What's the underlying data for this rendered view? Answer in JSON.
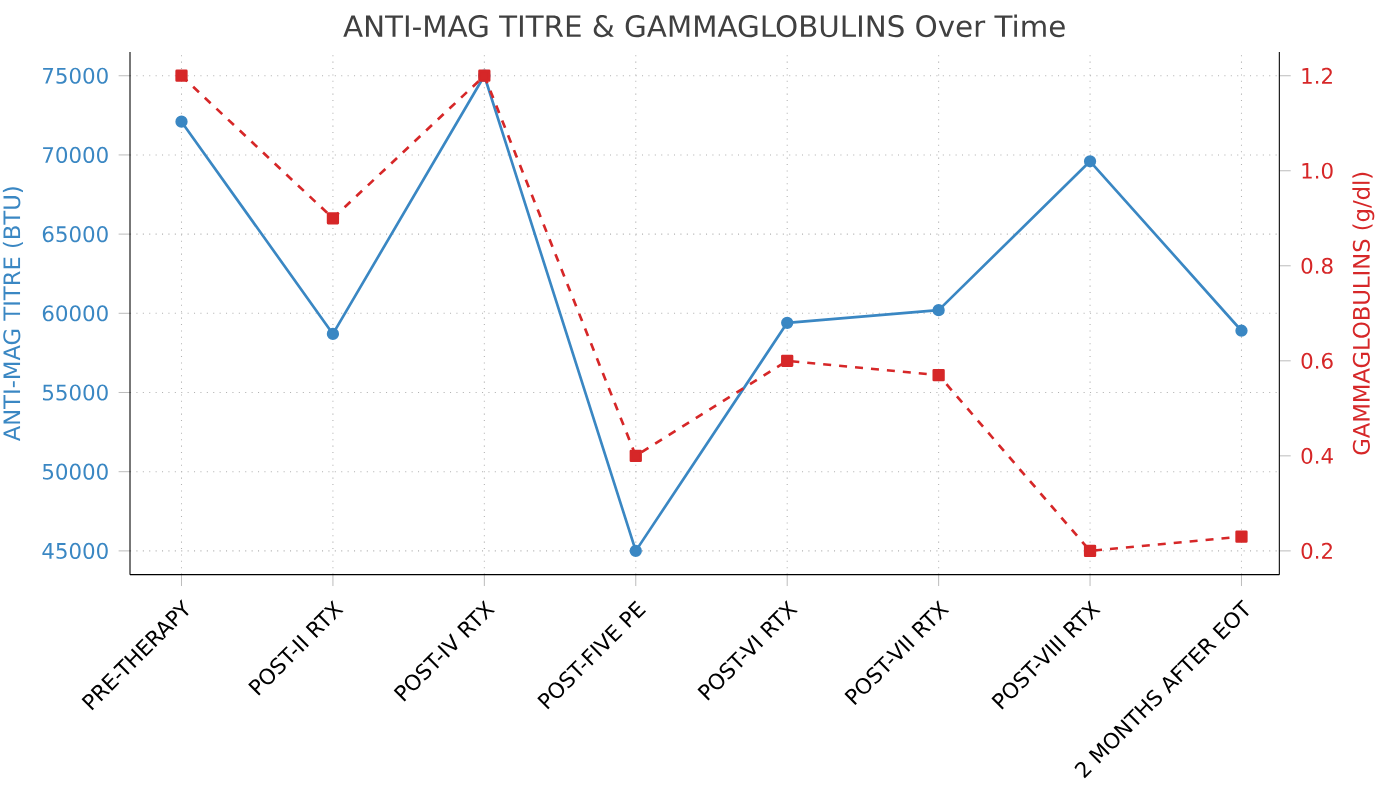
{
  "chart_data": {
    "type": "line",
    "title": "ANTI-MAG TITRE & GAMMAGLOBULINS Over Time",
    "ylabel": "ANTI-MAG TITRE (BTU)",
    "y2label": "GAMMAGLOBULINS (g/dl)",
    "categories": [
      "PRE-THERAPY",
      "POST-II RTX",
      "POST-IV RTX",
      "POST-FIVE PE",
      "POST-VI RTX",
      "POST-VII RTX",
      "POST-VIII RTX",
      "2 MONTHS AFTER EOT"
    ],
    "series": [
      {
        "name": null,
        "color": "#3a87c3",
        "marker": "circle",
        "line_style": "solid",
        "values": [
          72100,
          58700,
          75000,
          45000,
          59400,
          60200,
          69600,
          58900
        ]
      },
      {
        "name": null,
        "color": "#d62728",
        "marker": "square",
        "line_style": "dashed",
        "axis": "y2",
        "values": [
          1.2,
          0.9,
          1.2,
          0.4,
          0.6,
          0.57,
          0.2,
          0.23
        ]
      }
    ],
    "ylim": [
      43500,
      76500
    ],
    "yticks": [
      45000,
      50000,
      55000,
      60000,
      65000,
      70000,
      75000
    ],
    "y2lim": [
      0.15,
      1.25
    ],
    "y2ticks": [
      {
        "value": 0.2,
        "label": "0.2"
      },
      {
        "value": 0.4,
        "label": "0.4"
      },
      {
        "value": 0.6,
        "label": "0.6"
      },
      {
        "value": 0.8,
        "label": "0.8"
      },
      {
        "value": 1.0,
        "label": "1.0"
      },
      {
        "value": 1.2,
        "label": "1.2"
      }
    ],
    "grid": true
  }
}
